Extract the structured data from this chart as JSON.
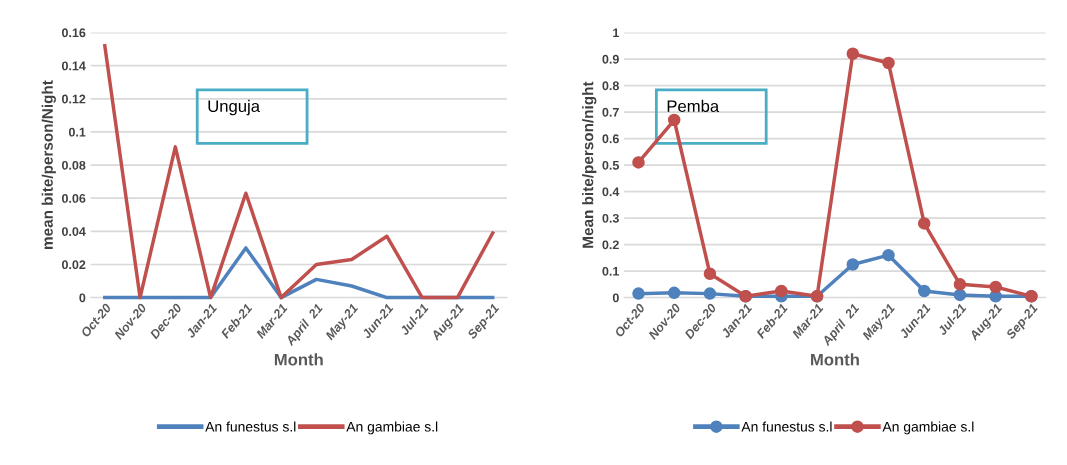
{
  "chart_data": [
    {
      "type": "line",
      "xlabel": "Month",
      "ylabel": "mean bite/person/Night",
      "annotations": [
        "Unguja"
      ],
      "categories": [
        "Oct-20",
        "Nov-20",
        "Dec-20",
        "Jan-21",
        "Feb-21",
        "Mar-21",
        "April  21",
        "May-21",
        "Jun-21",
        "Jul-21",
        "Aug-21",
        "Sep-21"
      ],
      "series": [
        {
          "name": "An funestus s.l",
          "color": "#4f81bd",
          "values": [
            0,
            0,
            0,
            0,
            0.03,
            0,
            0.011,
            0.007,
            0,
            0,
            0,
            0
          ]
        },
        {
          "name": "An gambiae s.l",
          "color": "#c0504d",
          "values": [
            0.152,
            0,
            0.091,
            0,
            0.063,
            0,
            0.02,
            0.023,
            0.037,
            0,
            0,
            0.039
          ]
        }
      ],
      "ylim": [
        0,
        0.16
      ],
      "yticks": [
        0,
        0.02,
        0.04,
        0.06,
        0.08,
        0.1,
        0.12,
        0.14,
        0.16
      ],
      "grid": "y",
      "legend": "bottom",
      "marker": "none"
    },
    {
      "type": "line",
      "xlabel": "Month",
      "ylabel": "Mean bite/person/night",
      "annotations": [
        "Pemba"
      ],
      "categories": [
        "Oct-20",
        "Nov-20",
        "Dec-20",
        "Jan-21",
        "Feb-21",
        "Mar-21",
        "April  21",
        "May-21",
        "Jun-21",
        "Jul-21",
        "Aug-21",
        "Sep-21"
      ],
      "series": [
        {
          "name": "An funestus s.l",
          "color": "#4f81bd",
          "values": [
            0.015,
            0.018,
            0.015,
            0.005,
            0.005,
            0.005,
            0.125,
            0.16,
            0.025,
            0.01,
            0.005,
            0.005
          ]
        },
        {
          "name": "An gambiae s.l",
          "color": "#c0504d",
          "values": [
            0.51,
            0.67,
            0.09,
            0.005,
            0.025,
            0.005,
            0.92,
            0.885,
            0.28,
            0.05,
            0.04,
            0.005
          ]
        }
      ],
      "ylim": [
        0,
        1
      ],
      "yticks": [
        0,
        0.1,
        0.2,
        0.3,
        0.4,
        0.5,
        0.6,
        0.7,
        0.8,
        0.9,
        1
      ],
      "grid": "y",
      "legend": "bottom",
      "marker": "circle"
    }
  ]
}
